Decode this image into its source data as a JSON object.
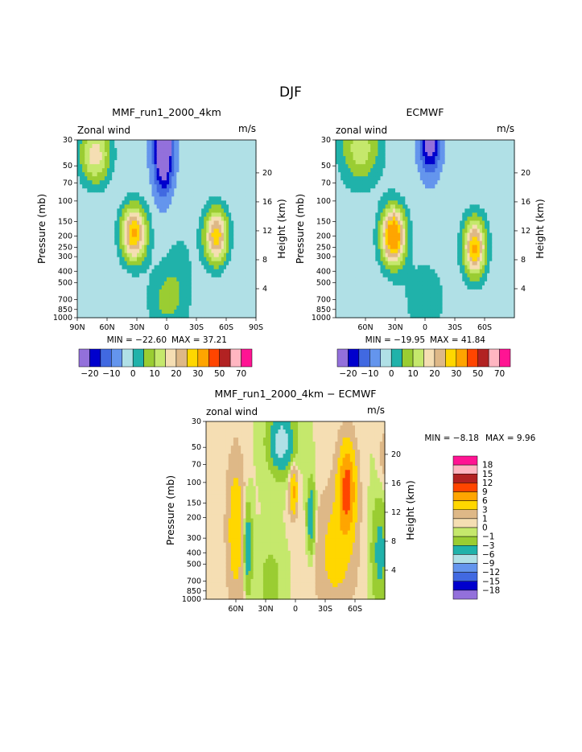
{
  "figure_title": "DJF",
  "colors": {
    "abs": [
      "#9370db",
      "#0000cd",
      "#4169e1",
      "#6495ed",
      "#b0e0e6",
      "#20b2aa",
      "#9acd32",
      "#c5e86c",
      "#f5deb3",
      "#deb887",
      "#ffd700",
      "#ffa500",
      "#ff4500",
      "#b22222",
      "#ffb6c1",
      "#ff1493"
    ],
    "diff": [
      "#9370db",
      "#0000cd",
      "#4169e1",
      "#6495ed",
      "#b0e0e6",
      "#20b2aa",
      "#9acd32",
      "#c5e86c",
      "#f5deb3",
      "#deb887",
      "#ffd700",
      "#ffa500",
      "#ff4500",
      "#b22222",
      "#ffb6c1",
      "#ff1493"
    ]
  },
  "chart_data": [
    {
      "id": "model",
      "type": "heatmap",
      "title": "MMF_run1_2000_4km",
      "variable": "Zonal wind",
      "units": "m/s",
      "min_text": "MIN = −22.60",
      "max_text": "MAX =   37.21",
      "xlabel": "",
      "ylabel": "Pressure (mb)",
      "ylabel_right": "Height (km)",
      "xlim": [
        90,
        -90
      ],
      "x_ticks": [
        "90N",
        "60N",
        "30N",
        "0",
        "30S",
        "60S",
        "90S"
      ],
      "x_tick_values": [
        90,
        60,
        30,
        0,
        -30,
        -60,
        -90
      ],
      "y_ticks": [
        "30",
        "50",
        "70",
        "100",
        "150",
        "200",
        "250",
        "300",
        "400",
        "500",
        "700",
        "850",
        "1000"
      ],
      "y_tick_values": [
        30,
        50,
        70,
        100,
        150,
        200,
        250,
        300,
        400,
        500,
        700,
        850,
        1000
      ],
      "height_ticks": [
        "20",
        "16",
        "12",
        "8",
        "4"
      ],
      "height_values": [
        20,
        16,
        12,
        8,
        4
      ],
      "ylim": [
        1000,
        30
      ],
      "levels": [
        -20,
        -15,
        -10,
        -5,
        0,
        5,
        10,
        15,
        20,
        25,
        30,
        40,
        50,
        60,
        70
      ],
      "colorbar_labels": [
        "−20",
        "−10",
        "0",
        "10",
        "20",
        "30",
        "50",
        "70"
      ],
      "colorbar_label_index": [
        1,
        3,
        5,
        7,
        9,
        11,
        13,
        15
      ],
      "features": [
        {
          "kind": "max",
          "lat": 33,
          "p": 200,
          "value": 35
        },
        {
          "kind": "max",
          "lat": -50,
          "p": 200,
          "value": 32
        },
        {
          "kind": "max",
          "lat": 73,
          "p": 35,
          "value": 26
        },
        {
          "kind": "min",
          "lat": 3,
          "p": 40,
          "value": -22.6
        }
      ]
    },
    {
      "id": "obs",
      "type": "heatmap",
      "title": "ECMWF",
      "variable": "zonal wind",
      "units": "m/s",
      "min_text": "MIN = −19.95",
      "max_text": "MAX =   41.84",
      "xlabel": "",
      "ylabel": "Pressure (mb)",
      "ylabel_right": "Height (km)",
      "xlim": [
        90,
        -90
      ],
      "x_ticks": [
        "60N",
        "30N",
        "0",
        "30S",
        "60S"
      ],
      "x_tick_values": [
        60,
        30,
        0,
        -30,
        -60
      ],
      "y_ticks": [
        "30",
        "50",
        "70",
        "100",
        "150",
        "200",
        "250",
        "300",
        "400",
        "500",
        "700",
        "850",
        "1000"
      ],
      "y_tick_values": [
        30,
        50,
        70,
        100,
        150,
        200,
        250,
        300,
        400,
        500,
        700,
        850,
        1000
      ],
      "height_ticks": [
        "20",
        "16",
        "12",
        "8",
        "4"
      ],
      "height_values": [
        20,
        16,
        12,
        8,
        4
      ],
      "ylim": [
        1000,
        30
      ],
      "levels": [
        -20,
        -15,
        -10,
        -5,
        0,
        5,
        10,
        15,
        20,
        25,
        30,
        40,
        50,
        60,
        70
      ],
      "colorbar_labels": [
        "−20",
        "−10",
        "0",
        "10",
        "20",
        "30",
        "50",
        "70"
      ],
      "colorbar_label_index": [
        1,
        3,
        5,
        7,
        9,
        11,
        13,
        15
      ],
      "features": [
        {
          "kind": "max",
          "lat": 32,
          "p": 200,
          "value": 41.8
        },
        {
          "kind": "max",
          "lat": -50,
          "p": 250,
          "value": 33
        },
        {
          "kind": "min",
          "lat": -5,
          "p": 30,
          "value": -19.95
        }
      ]
    },
    {
      "id": "diff",
      "type": "heatmap",
      "title": "MMF_run1_2000_4km − ECMWF",
      "variable": "zonal wind",
      "units": "m/s",
      "min_text": "MIN =  −8.18",
      "max_text": "MAX =   9.96",
      "xlabel": "",
      "ylabel": "Pressure (mb)",
      "ylabel_right": "Height (km)",
      "xlim": [
        90,
        -90
      ],
      "x_ticks": [
        "60N",
        "30N",
        "0",
        "30S",
        "60S"
      ],
      "x_tick_values": [
        60,
        30,
        0,
        -30,
        -60
      ],
      "y_ticks": [
        "30",
        "50",
        "70",
        "100",
        "150",
        "200",
        "300",
        "400",
        "500",
        "700",
        "850",
        "1000"
      ],
      "y_tick_values": [
        30,
        50,
        70,
        100,
        150,
        200,
        300,
        400,
        500,
        700,
        850,
        1000
      ],
      "height_ticks": [
        "20",
        "16",
        "12",
        "8",
        "4"
      ],
      "height_values": [
        20,
        16,
        12,
        8,
        4
      ],
      "ylim": [
        1000,
        30
      ],
      "levels": [
        -18,
        -15,
        -12,
        -9,
        -6,
        -3,
        -1,
        0,
        1,
        3,
        6,
        9,
        12,
        15,
        18
      ],
      "colorbar_labels": [
        "18",
        "15",
        "12",
        "9",
        "6",
        "3",
        "1",
        "0",
        "−1",
        "−3",
        "−6",
        "−9",
        "−12",
        "−15",
        "−18"
      ],
      "features": [
        {
          "kind": "max",
          "lat": -52,
          "p": 110,
          "value": 9.96
        },
        {
          "kind": "max",
          "lat": 2,
          "p": 120,
          "value": 7
        },
        {
          "kind": "min",
          "lat": 48,
          "p": 350,
          "value": -6
        },
        {
          "kind": "min",
          "lat": -16,
          "p": 200,
          "value": -6
        },
        {
          "kind": "min",
          "lat": 14,
          "p": 45,
          "value": -8.18
        }
      ]
    }
  ]
}
